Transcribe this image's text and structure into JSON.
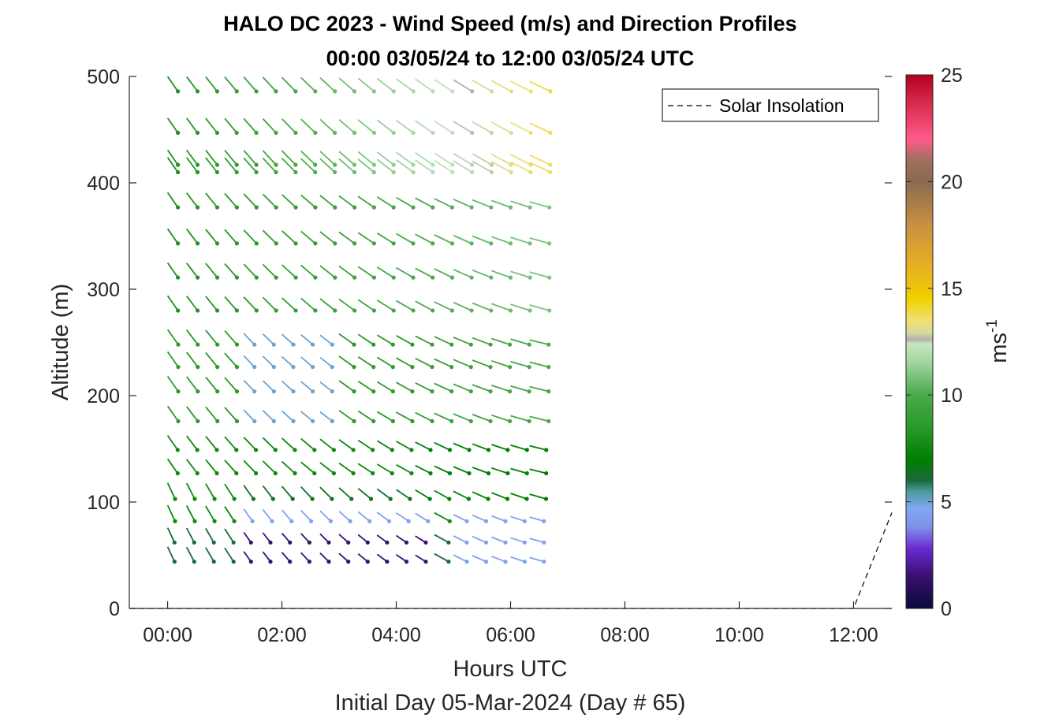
{
  "chart_data": {
    "type": "wind-barb-profile",
    "title": "HALO DC 2023 - Wind Speed (m/s) and Direction Profiles",
    "subtitle": "00:00 03/05/24 to 12:00 03/05/24  UTC",
    "xlabel": "Hours UTC",
    "xlabel2": "Initial Day 05-Mar-2024 (Day # 65)",
    "ylabel": "Altitude (m)",
    "xlim": [
      -0.67,
      12.67
    ],
    "ylim": [
      0,
      500
    ],
    "xticks": [
      0,
      2,
      4,
      6,
      8,
      10,
      12
    ],
    "xtick_labels": [
      "00:00",
      "02:00",
      "04:00",
      "06:00",
      "08:00",
      "10:00",
      "12:00"
    ],
    "yticks": [
      0,
      100,
      200,
      300,
      400,
      500
    ],
    "ytick_labels": [
      "0",
      "100",
      "200",
      "300",
      "400",
      "500"
    ],
    "colorbar": {
      "label": "ms",
      "label_sup": "-1",
      "range": [
        0,
        25
      ],
      "ticks": [
        0,
        5,
        10,
        15,
        20,
        25
      ],
      "tick_labels": [
        "0",
        "5",
        "10",
        "15",
        "20",
        "25"
      ],
      "stops": [
        {
          "v": 0,
          "c": "#0a0a3a"
        },
        {
          "v": 1.5,
          "c": "#3a1070"
        },
        {
          "v": 2.8,
          "c": "#6a2ad0"
        },
        {
          "v": 3.8,
          "c": "#7f8fe8"
        },
        {
          "v": 4.7,
          "c": "#80a8f0"
        },
        {
          "v": 5.5,
          "c": "#4a9a9a"
        },
        {
          "v": 6.0,
          "c": "#1a6a3a"
        },
        {
          "v": 7.0,
          "c": "#008000"
        },
        {
          "v": 8.5,
          "c": "#2a9a2a"
        },
        {
          "v": 10.0,
          "c": "#4aaa4a"
        },
        {
          "v": 11.5,
          "c": "#9fd49f"
        },
        {
          "v": 12.4,
          "c": "#c8e6c0"
        },
        {
          "v": 12.6,
          "c": "#b0b0b0"
        },
        {
          "v": 12.9,
          "c": "#d8d8a0"
        },
        {
          "v": 13.5,
          "c": "#f0e070"
        },
        {
          "v": 14.5,
          "c": "#f0d000"
        },
        {
          "v": 16.0,
          "c": "#e8b020"
        },
        {
          "v": 18.0,
          "c": "#c89040"
        },
        {
          "v": 20.0,
          "c": "#8a6a50"
        },
        {
          "v": 21.0,
          "c": "#a07060"
        },
        {
          "v": 22.0,
          "c": "#ff5a8a"
        },
        {
          "v": 24.0,
          "c": "#d02040"
        },
        {
          "v": 25.0,
          "c": "#b00020"
        }
      ]
    },
    "legend": {
      "entries": [
        "Solar Insolation"
      ],
      "placement": "top-right"
    },
    "solar_insolation": {
      "x": [
        -0.67,
        12.0,
        12.67
      ],
      "y": [
        0,
        0,
        90
      ]
    },
    "barb_grid": {
      "times_hours": {
        "start": 0,
        "step": 0.3333,
        "count": 20
      },
      "altitudes_m": [
        44,
        62,
        82,
        103,
        127,
        149,
        176,
        204,
        227,
        248,
        280,
        311,
        343,
        377,
        410,
        417,
        447,
        486
      ]
    }
  }
}
